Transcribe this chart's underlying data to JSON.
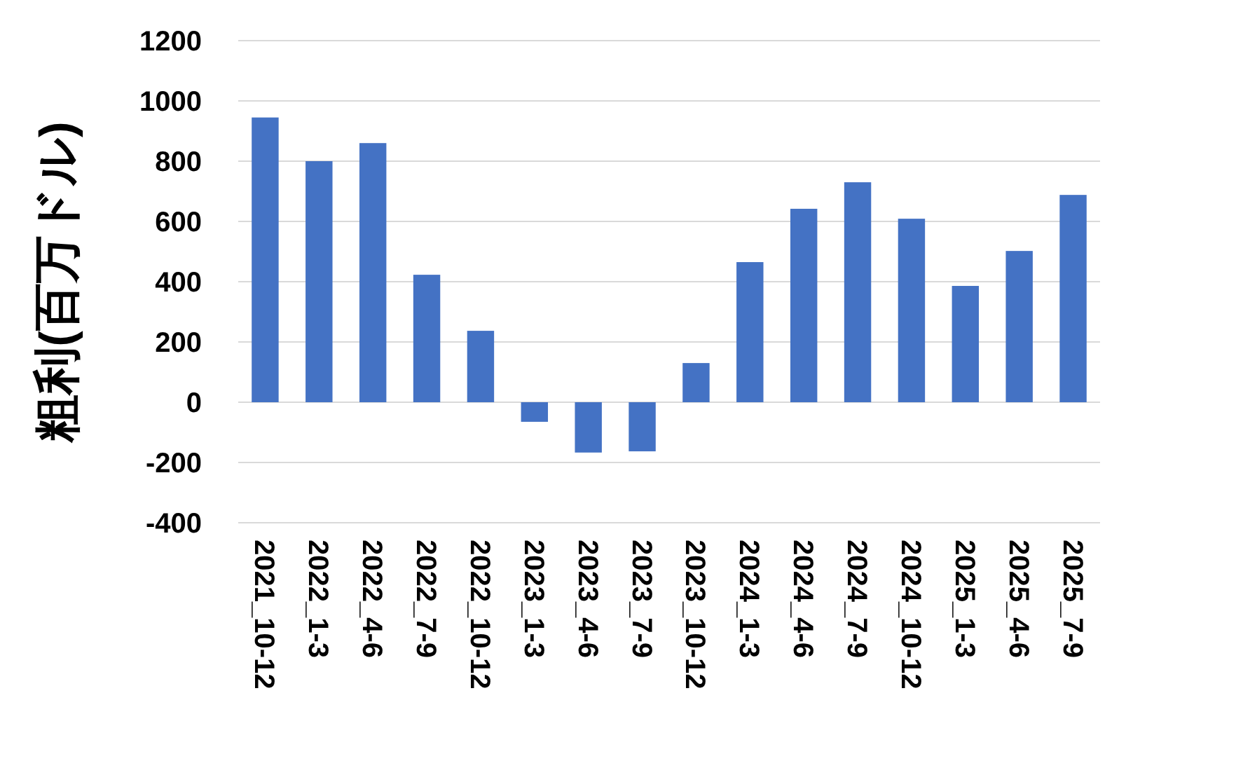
{
  "chart_data": {
    "type": "bar",
    "ylabel": "粗利(百万ドル)",
    "categories": [
      "2021_10-12",
      "2022_1-3",
      "2022_4-6",
      "2022_7-9",
      "2022_10-12",
      "2023_1-3",
      "2023_4-6",
      "2023_7-9",
      "2023_10-12",
      "2024_1-3",
      "2024_4-6",
      "2024_7-9",
      "2024_10-12",
      "2025_1-3",
      "2025_4-6",
      "2025_7-9"
    ],
    "values": [
      945,
      800,
      860,
      423,
      237,
      -65,
      -167,
      -163,
      130,
      465,
      642,
      730,
      609,
      386,
      502,
      688
    ],
    "color": "#4472c4",
    "ylim": [
      -400,
      1200
    ],
    "yticks": [
      -400,
      -200,
      0,
      200,
      400,
      600,
      800,
      1000,
      1200
    ],
    "grid": "y"
  }
}
